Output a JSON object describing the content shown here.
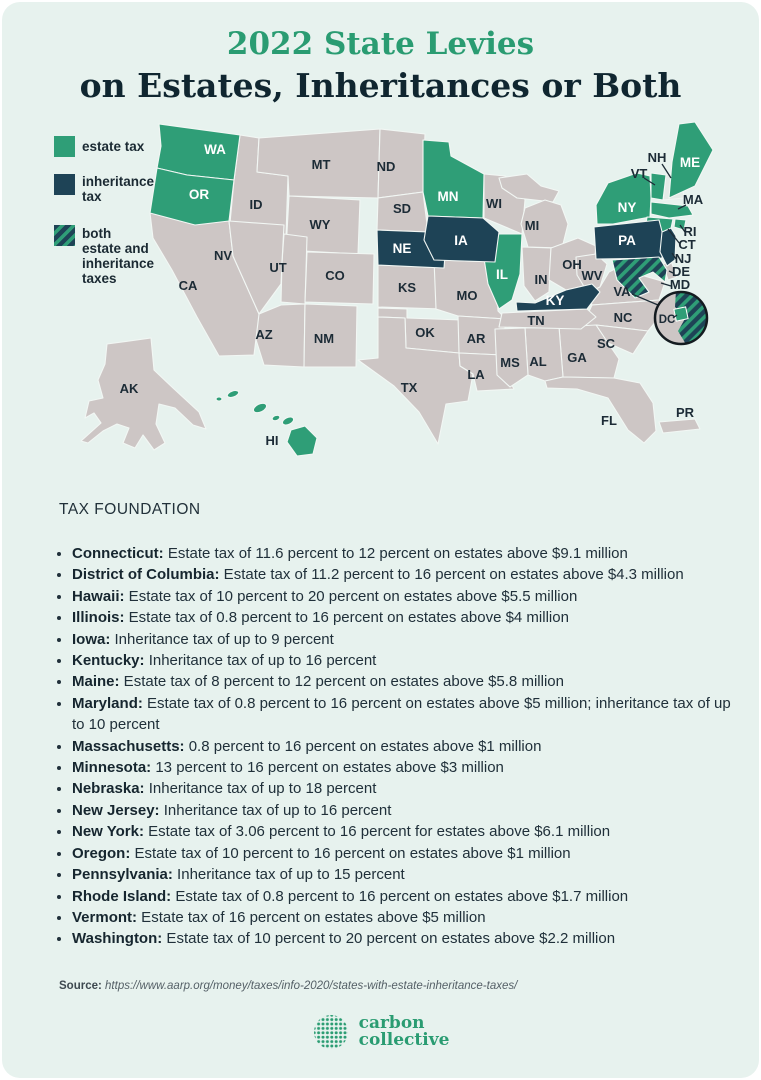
{
  "title": "2022 State Levies",
  "subtitle": "on Estates, Inheritances or Both",
  "legend": {
    "estate_label": "estate tax",
    "inheritance_label": "inheritance tax",
    "both_label": "both estate and inheritance taxes"
  },
  "map": {
    "labels": {
      "WA": "WA",
      "OR": "OR",
      "CA": "CA",
      "NV": "NV",
      "ID": "ID",
      "MT": "MT",
      "WY": "WY",
      "UT": "UT",
      "CO": "CO",
      "AZ": "AZ",
      "NM": "NM",
      "ND": "ND",
      "SD": "SD",
      "NE": "NE",
      "KS": "KS",
      "OK": "OK",
      "TX": "TX",
      "MN": "MN",
      "IA": "IA",
      "MO": "MO",
      "AR": "AR",
      "LA": "LA",
      "WI": "WI",
      "IL": "IL",
      "MI": "MI",
      "IN": "IN",
      "OH": "OH",
      "KY": "KY",
      "TN": "TN",
      "MS": "MS",
      "AL": "AL",
      "GA": "GA",
      "FL": "FL",
      "WV": "WV",
      "VA": "VA",
      "NC": "NC",
      "SC": "SC",
      "PA": "PA",
      "NY": "NY",
      "VT": "VT",
      "NH": "NH",
      "ME": "ME",
      "MA": "MA",
      "RI": "RI",
      "CT": "CT",
      "NJ": "NJ",
      "DE": "DE",
      "MD": "MD",
      "DC": "DC",
      "AK": "AK",
      "HI": "HI",
      "PR": "PR"
    },
    "categories": {
      "estate_tax": [
        "CT",
        "DC",
        "HI",
        "IL",
        "ME",
        "MA",
        "MN",
        "NY",
        "OR",
        "RI",
        "VT",
        "WA"
      ],
      "inheritance_tax": [
        "IA",
        "KY",
        "NE",
        "NJ",
        "PA"
      ],
      "both_estate_and_inheritance": [
        "MD"
      ]
    }
  },
  "section_heading": "TAX FOUNDATION",
  "items": [
    {
      "state": "Connecticut:",
      "text": "Estate tax of 11.6 percent to 12 percent on estates above $9.1 million"
    },
    {
      "state": "District of Columbia:",
      "text": "Estate tax of 11.2 percent to 16 percent on estates above $4.3 million"
    },
    {
      "state": "Hawaii:",
      "text": "Estate tax of 10 percent to 20 percent on estates above $5.5 million"
    },
    {
      "state": "Illinois:",
      "text": "Estate tax of 0.8 percent to 16 percent on estates above $4 million"
    },
    {
      "state": "Iowa:",
      "text": "Inheritance tax of up to 9 percent"
    },
    {
      "state": "Kentucky:",
      "text": "Inheritance tax of up to 16 percent"
    },
    {
      "state": "Maine:",
      "text": "Estate tax of 8 percent to 12 percent on estates above $5.8 million"
    },
    {
      "state": "Maryland:",
      "text": "Estate tax of 0.8 percent to 16 percent on estates above $5 million; inheritance tax of up to 10 percent"
    },
    {
      "state": "Massachusetts:",
      "text": "0.8 percent to 16 percent on estates above $1 million"
    },
    {
      "state": "Minnesota:",
      "text": "13 percent to 16 percent on estates above $3 million"
    },
    {
      "state": "Nebraska:",
      "text": "Inheritance tax of up to 18 percent"
    },
    {
      "state": "New Jersey:",
      "text": "Inheritance tax of up to 16 percent"
    },
    {
      "state": "New York:",
      "text": "Estate tax of 3.06 percent to 16 percent for estates above $6.1 million"
    },
    {
      "state": "Oregon:",
      "text": "Estate tax of 10 percent to 16 percent on estates above $1 million"
    },
    {
      "state": "Pennsylvania:",
      "text": "Inheritance tax of up to 15 percent"
    },
    {
      "state": "Rhode Island:",
      "text": "Estate tax of 0.8 percent to 16 percent on estates above $1.7 million"
    },
    {
      "state": "Vermont:",
      "text": "Estate tax of 16 percent on estates above $5 million"
    },
    {
      "state": "Washington:",
      "text": "Estate tax of 10 percent to 20 percent on estates above $2.2 million"
    }
  ],
  "source": {
    "label": "Source:",
    "url": "https://www.aarp.org/money/taxes/info-2020/states-with-estate-inheritance-taxes/"
  },
  "logo": {
    "line1": "carbon",
    "line2": "collective"
  },
  "colors": {
    "estate": "#2f9e77",
    "inherit": "#1e4356",
    "neutral": "#cdc6c5",
    "background": "#e7f2ee",
    "title_green": "#2a9c72",
    "ink": "#102630"
  }
}
